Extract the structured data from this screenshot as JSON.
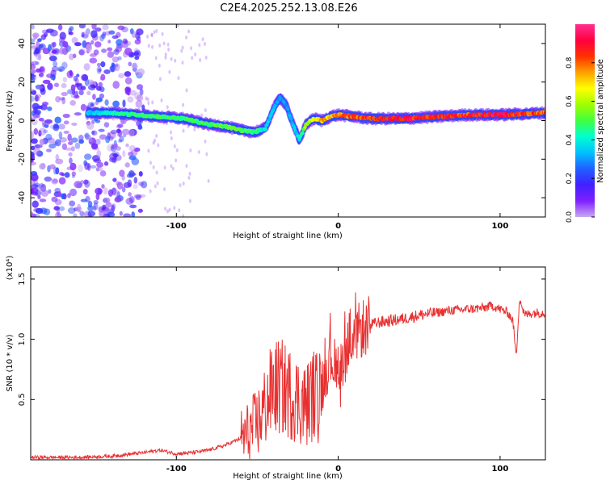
{
  "title": "C2E4.2025.252.13.08.E26",
  "chart_data": [
    {
      "type": "heatmap",
      "xlabel": "Height of straight line (km)",
      "ylabel": "Frequency (Hz)",
      "xlim": [
        -190,
        128
      ],
      "ylim": [
        -50,
        50
      ],
      "x_ticks": [
        -100,
        0,
        100
      ],
      "y_ticks": [
        -40,
        -20,
        0,
        20,
        40
      ],
      "colorbar": {
        "label": "Normalized spectral amplitude",
        "range": [
          0,
          1
        ],
        "ticks": [
          0.0,
          0.2,
          0.4,
          0.6,
          0.8
        ],
        "colormap": [
          "#c8a8f0",
          "#8020ff",
          "#4020ff",
          "#2060ff",
          "#00c0ff",
          "#00ffd0",
          "#40ff40",
          "#a0ff00",
          "#ffff00",
          "#ffa000",
          "#ff3000",
          "#ff0040",
          "#ff3090"
        ]
      },
      "ridge": {
        "x": [
          -155,
          -140,
          -125,
          -110,
          -95,
          -80,
          -70,
          -60,
          -52,
          -45,
          -40,
          -36,
          -32,
          -28,
          -24,
          -20,
          -15,
          -10,
          -5,
          0,
          10,
          20,
          40,
          60,
          80,
          100,
          128
        ],
        "freq": [
          4,
          4,
          3,
          2,
          1,
          -2,
          -3,
          -5,
          -6,
          -4,
          6,
          12,
          8,
          -2,
          -10,
          -2,
          1,
          0,
          2,
          3,
          2,
          1,
          1,
          2,
          3,
          3,
          4
        ],
        "amp": [
          0.35,
          0.45,
          0.5,
          0.5,
          0.5,
          0.5,
          0.55,
          0.55,
          0.5,
          0.4,
          0.35,
          0.3,
          0.3,
          0.35,
          0.4,
          0.6,
          0.7,
          0.8,
          0.75,
          0.8,
          0.85,
          0.9,
          0.95,
          0.9,
          0.9,
          0.95,
          0.85
        ]
      },
      "noise_region": {
        "x_range": [
          -190,
          -120
        ],
        "freq_range": [
          -50,
          50
        ],
        "amp_range": [
          0.0,
          0.25
        ]
      }
    },
    {
      "type": "line",
      "xlabel": "Height of straight line (km)",
      "ylabel": "SNR (10 * v/v)",
      "y_multiplier_label": "(x10⁴)",
      "xlim": [
        -190,
        128
      ],
      "ylim": [
        0,
        1.6
      ],
      "x_ticks": [
        -100,
        0,
        100
      ],
      "y_ticks": [
        0.5,
        1.0,
        1.5
      ],
      "series": [
        {
          "name": "SNR",
          "color": "#e83030",
          "x": [
            -190,
            -160,
            -140,
            -120,
            -110,
            -100,
            -90,
            -80,
            -70,
            -60,
            -55,
            -50,
            -45,
            -40,
            -35,
            -30,
            -25,
            -20,
            -15,
            -12,
            -8,
            -5,
            0,
            5,
            10,
            15,
            20,
            25,
            30,
            40,
            50,
            60,
            70,
            80,
            90,
            95,
            100,
            105,
            108,
            110,
            112,
            115,
            120,
            128
          ],
          "y": [
            0.02,
            0.02,
            0.03,
            0.06,
            0.08,
            0.05,
            0.06,
            0.08,
            0.12,
            0.18,
            0.22,
            0.3,
            0.45,
            0.6,
            0.6,
            0.55,
            0.5,
            0.45,
            0.55,
            0.5,
            0.75,
            0.85,
            0.8,
            0.9,
            1.0,
            1.1,
            1.12,
            1.14,
            1.15,
            1.17,
            1.2,
            1.22,
            1.24,
            1.25,
            1.26,
            1.28,
            1.25,
            1.22,
            1.15,
            0.85,
            1.35,
            1.2,
            1.22,
            1.22
          ]
        }
      ]
    }
  ]
}
